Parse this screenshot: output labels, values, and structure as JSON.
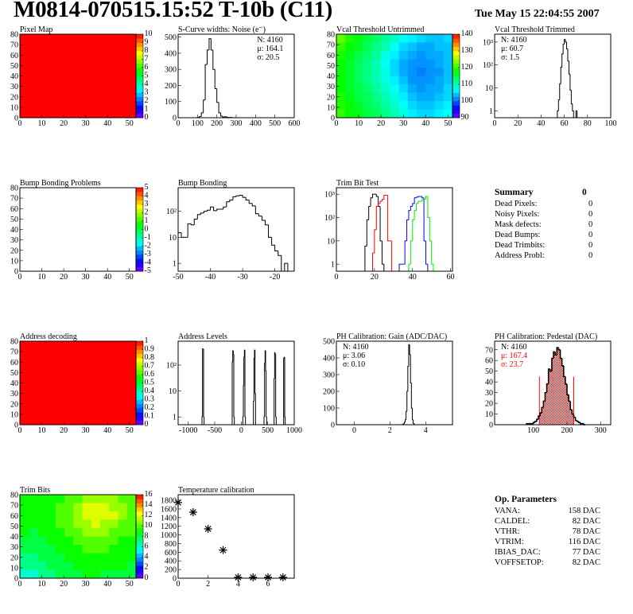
{
  "header": {
    "title": "M0814-070515.15:52 T-10b (C11)",
    "date": "Tue May 15 22:04:55 2007"
  },
  "summary": {
    "title": "Summary",
    "total": "0",
    "rows": [
      {
        "label": "Dead Pixels:",
        "value": "0"
      },
      {
        "label": "Noisy Pixels:",
        "value": "0"
      },
      {
        "label": "Mask defects:",
        "value": "0"
      },
      {
        "label": "Dead Bumps:",
        "value": "0"
      },
      {
        "label": "Dead Trimbits:",
        "value": "0"
      },
      {
        "label": "Address Probl:",
        "value": "0"
      }
    ]
  },
  "op_parameters": {
    "title": "Op. Parameters",
    "rows": [
      {
        "label": "VANA:",
        "value": "158 DAC"
      },
      {
        "label": "CALDEL:",
        "value": "82 DAC"
      },
      {
        "label": "VTHR:",
        "value": "78 DAC"
      },
      {
        "label": "VTRIM:",
        "value": "116 DAC"
      },
      {
        "label": "IBIAS_DAC:",
        "value": "77 DAC"
      },
      {
        "label": "VOFFSETOP:",
        "value": "82 DAC"
      }
    ]
  },
  "chart_data": [
    {
      "type": "heatmap",
      "title": "Pixel Map",
      "xlim": [
        0,
        53
      ],
      "ylim": [
        0,
        80
      ],
      "zlim": [
        0,
        10
      ],
      "xticks": [
        0,
        10,
        20,
        30,
        40,
        50
      ],
      "yticks": [
        0,
        10,
        20,
        30,
        40,
        50,
        60,
        70,
        80
      ],
      "palette_ticks": [
        0,
        1,
        2,
        3,
        4,
        5,
        6,
        7,
        8,
        9,
        10
      ],
      "z_grid": [
        [
          10
        ]
      ]
    },
    {
      "type": "bar",
      "title": "S-Curve widths: Noise (e⁻)",
      "xlim": [
        0,
        600
      ],
      "ylim": [
        0,
        518
      ],
      "ylog": false,
      "xticks": [
        0,
        100,
        200,
        300,
        400,
        500,
        600
      ],
      "yticks": [
        0,
        100,
        200,
        300,
        400,
        500
      ],
      "stats": {
        "position": "top-right",
        "lines": [
          {
            "text": "N: 4160",
            "color": "#000000"
          },
          {
            "text": "μ: 164.1",
            "color": "#000000"
          },
          {
            "text": "σ: 20.5",
            "color": "#000000"
          }
        ]
      },
      "series": [
        {
          "color": "#000000",
          "x0": 100,
          "width": 10,
          "values": [
            2,
            8,
            30,
            110,
            330,
            420,
            490,
            420,
            300,
            180,
            95,
            30,
            10,
            4,
            6,
            3,
            1,
            2,
            0
          ]
        }
      ]
    },
    {
      "type": "heatmap",
      "title": "Vcal Threshold Untrimmed",
      "xlim": [
        0,
        52
      ],
      "ylim": [
        0,
        80
      ],
      "zlim": [
        90,
        140
      ],
      "xticks": [
        0,
        10,
        20,
        30,
        40,
        50
      ],
      "yticks": [
        0,
        10,
        20,
        30,
        40,
        50,
        60,
        70,
        80
      ],
      "palette_ticks": [
        90,
        100,
        110,
        120,
        130,
        140
      ],
      "z_grid": [
        [
          122,
          119,
          117,
          115,
          113,
          111,
          109,
          107,
          106,
          105,
          104,
          104,
          105
        ],
        [
          120,
          118,
          116,
          114,
          112,
          110,
          107,
          105,
          104,
          103,
          103,
          104,
          104
        ],
        [
          119,
          117,
          115,
          113,
          111,
          108,
          106,
          104,
          103,
          102,
          103,
          103,
          104
        ],
        [
          118,
          116,
          114,
          112,
          110,
          107,
          105,
          103,
          102,
          102,
          102,
          103,
          104
        ],
        [
          118,
          116,
          114,
          112,
          110,
          108,
          105,
          103,
          102,
          101,
          102,
          102,
          104
        ],
        [
          118,
          116,
          114,
          112,
          110,
          108,
          106,
          104,
          102,
          102,
          102,
          103,
          104
        ],
        [
          118,
          116,
          115,
          113,
          111,
          109,
          107,
          105,
          103,
          102,
          103,
          103,
          105
        ],
        [
          119,
          117,
          115,
          114,
          112,
          110,
          108,
          106,
          104,
          103,
          103,
          104,
          105
        ],
        [
          119,
          118,
          116,
          114,
          113,
          111,
          109,
          107,
          105,
          104,
          104,
          105,
          106
        ],
        [
          120,
          118,
          117,
          115,
          114,
          112,
          110,
          108,
          106,
          105,
          105,
          106,
          107
        ]
      ]
    },
    {
      "type": "bar",
      "title": "Vcal Threshold Trimmed",
      "xlim": [
        0,
        100
      ],
      "ylim": [
        0.5,
        2200
      ],
      "ylog": true,
      "xticks": [
        0,
        20,
        40,
        60,
        80,
        100
      ],
      "yticks": [
        1,
        10,
        100,
        1000
      ],
      "ytick_labels": [
        "1",
        "10",
        "10²",
        "10³"
      ],
      "stats": {
        "position": "top-left",
        "lines": [
          {
            "text": "N: 4160",
            "color": "#000000"
          },
          {
            "text": "μ: 60.7",
            "color": "#000000"
          },
          {
            "text": "σ:  1.5",
            "color": "#000000"
          }
        ]
      },
      "series": [
        {
          "color": "#000000",
          "x0": 54,
          "width": 1,
          "values": [
            1,
            3,
            15,
            80,
            300,
            800,
            1300,
            1000,
            500,
            150,
            40,
            8,
            2,
            1,
            0,
            0,
            1,
            0
          ]
        }
      ]
    },
    {
      "type": "heatmap",
      "title": "Bump Bonding Problems",
      "xlim": [
        0,
        53
      ],
      "ylim": [
        0,
        80
      ],
      "zlim": [
        -5,
        5
      ],
      "xticks": [
        0,
        10,
        20,
        30,
        40,
        50
      ],
      "yticks": [
        0,
        10,
        20,
        30,
        40,
        50,
        60,
        70,
        80
      ],
      "palette_ticks": [
        -5,
        -4,
        -3,
        -2,
        -1,
        0,
        1,
        2,
        3,
        4,
        5
      ],
      "z_grid": []
    },
    {
      "type": "bar",
      "title": "Bump Bonding",
      "xlim": [
        -50,
        -14
      ],
      "ylim": [
        0.5,
        800
      ],
      "ylog": true,
      "xticks": [
        -50,
        -40,
        -30,
        -20
      ],
      "yticks": [
        1,
        10,
        100
      ],
      "ytick_labels": [
        "1",
        "10",
        "10²"
      ],
      "series": [
        {
          "color": "#000000",
          "x0": -50,
          "width": 1,
          "values": [
            15,
            10,
            10,
            33,
            30,
            50,
            75,
            85,
            100,
            110,
            145,
            105,
            120,
            120,
            145,
            230,
            270,
            360,
            390,
            410,
            340,
            270,
            200,
            160,
            80,
            65,
            45,
            30,
            10,
            5,
            3,
            2,
            0,
            1,
            0
          ]
        }
      ]
    },
    {
      "type": "bar",
      "title": "Trim Bit Test",
      "xlim": [
        0,
        61
      ],
      "ylim": [
        0.5,
        1900
      ],
      "ylog": true,
      "xticks": [
        0,
        20,
        40,
        60
      ],
      "yticks": [
        1,
        10,
        100,
        1000
      ],
      "ytick_labels": [
        "1",
        "10",
        "10²",
        "10³"
      ],
      "series": [
        {
          "color": "#000000",
          "x0": 15,
          "width": 1,
          "values": [
            6,
            80,
            300,
            700,
            1000,
            1000,
            800,
            300,
            10,
            1
          ]
        },
        {
          "color": "#ff0000",
          "x0": 19,
          "width": 1,
          "values": [
            3,
            30,
            300,
            400,
            500,
            600,
            900,
            900,
            10,
            10
          ]
        },
        {
          "color": "#0000ff",
          "x0": 33,
          "width": 1,
          "values": [
            1,
            1,
            1,
            10,
            80,
            200,
            300,
            400,
            700,
            750,
            800,
            800,
            700,
            10,
            1
          ]
        },
        {
          "color": "#00ee00",
          "x0": 38,
          "width": 1,
          "values": [
            1,
            10,
            80,
            200,
            400,
            500,
            500,
            600,
            600,
            800,
            100,
            10,
            1
          ]
        }
      ]
    },
    {
      "type": "heatmap",
      "title": "Address decoding",
      "xlim": [
        0,
        53
      ],
      "ylim": [
        0,
        80
      ],
      "zlim": [
        0,
        1
      ],
      "xticks": [
        0,
        10,
        20,
        30,
        40,
        50
      ],
      "yticks": [
        0,
        10,
        20,
        30,
        40,
        50,
        60,
        70,
        80
      ],
      "palette_ticks": [
        0,
        0.1,
        0.2,
        0.3,
        0.4,
        0.5,
        0.6,
        0.7,
        0.8,
        0.9,
        1
      ],
      "z_grid": [
        [
          1
        ]
      ]
    },
    {
      "type": "bar",
      "title": "Address Levels",
      "xlim": [
        -1190,
        1000
      ],
      "ylim": [
        0.5,
        830
      ],
      "ylog": true,
      "xticks": [
        -1000,
        -500,
        0,
        500,
        1000
      ],
      "yticks": [
        1,
        10,
        100
      ],
      "ytick_labels": [
        "1",
        "10",
        "10²"
      ],
      "series": [
        {
          "color": "#000000",
          "width": 10,
          "bin_list": [
            [
              -740,
              1
            ],
            [
              -730,
              420
            ],
            [
              -720,
              420
            ],
            [
              -710,
              1
            ],
            [
              -170,
              130
            ],
            [
              -160,
              360
            ],
            [
              -150,
              260
            ],
            [
              -140,
              1
            ],
            [
              30,
              1
            ],
            [
              40,
              16
            ],
            [
              50,
              200
            ],
            [
              60,
              380
            ],
            [
              70,
              1
            ],
            [
              230,
              4
            ],
            [
              240,
              180
            ],
            [
              250,
              380
            ],
            [
              260,
              8
            ],
            [
              430,
              1
            ],
            [
              440,
              120
            ],
            [
              450,
              360
            ],
            [
              460,
              60
            ],
            [
              470,
              1
            ],
            [
              620,
              30
            ],
            [
              630,
              300
            ],
            [
              640,
              260
            ],
            [
              650,
              1
            ],
            [
              800,
              180
            ],
            [
              810,
              200
            ],
            [
              820,
              1
            ]
          ]
        }
      ]
    },
    {
      "type": "bar",
      "title": "PH Calibration: Gain (ADC/DAC)",
      "xlim": [
        -1,
        5.5
      ],
      "ylim": [
        0,
        500
      ],
      "ylog": false,
      "xticks": [
        0,
        2,
        4
      ],
      "yticks": [
        0,
        100,
        200,
        300,
        400,
        500
      ],
      "stats": {
        "position": "top-left",
        "lines": [
          {
            "text": "N: 4160",
            "color": "#000000"
          },
          {
            "text": "μ: 3.06",
            "color": "#000000"
          },
          {
            "text": "σ: 0.10",
            "color": "#000000"
          }
        ]
      },
      "series": [
        {
          "color": "#000000",
          "x0": 2.7,
          "width": 0.05,
          "values": [
            2,
            5,
            15,
            30,
            80,
            200,
            350,
            480,
            420,
            250,
            100,
            30,
            8,
            2
          ]
        }
      ]
    },
    {
      "type": "bar",
      "title": "PH Calibration: Pedestal (DAC)",
      "xlim": [
        -15,
        330
      ],
      "ylim": [
        0,
        78
      ],
      "ylog": false,
      "xticks": [
        100,
        200,
        300
      ],
      "yticks": [
        0,
        10,
        20,
        30,
        40,
        50,
        60,
        70
      ],
      "stats": {
        "position": "top-left",
        "lines": [
          {
            "text": "N: 4160",
            "color": "#000000"
          },
          {
            "text": "μ: 167.4",
            "color": "#ff0000"
          },
          {
            "text": "σ: 23.7",
            "color": "#ff0000"
          }
        ]
      },
      "fit_range": [
        118,
        220
      ],
      "fit_color": "#ff0000",
      "fit_marker_height": 45,
      "series": [
        {
          "color": "#000000",
          "x0": 80,
          "width": 5,
          "values": [
            1,
            1,
            1,
            1,
            2,
            3,
            5,
            8,
            11,
            16,
            22,
            30,
            38,
            52,
            50,
            62,
            68,
            65,
            72,
            70,
            62,
            55,
            45,
            38,
            28,
            22,
            14,
            10,
            7,
            4,
            3,
            2,
            1,
            1,
            0
          ]
        }
      ]
    },
    {
      "type": "heatmap",
      "title": "Trim Bits",
      "xlim": [
        0,
        53
      ],
      "ylim": [
        0,
        80
      ],
      "zlim": [
        0,
        16
      ],
      "xticks": [
        0,
        10,
        20,
        30,
        40,
        50
      ],
      "yticks": [
        0,
        10,
        20,
        30,
        40,
        50,
        60,
        70,
        80
      ],
      "palette_ticks": [
        0,
        2,
        4,
        6,
        8,
        10,
        12,
        14,
        16
      ],
      "z_grid": [
        [
          9,
          9,
          9,
          9,
          9,
          10,
          10,
          11,
          11,
          11,
          11,
          10,
          10
        ],
        [
          9,
          9,
          9,
          9,
          10,
          10,
          11,
          12,
          12,
          12,
          11,
          11,
          10
        ],
        [
          9,
          9,
          9,
          9,
          10,
          10,
          11,
          12,
          12,
          12,
          12,
          11,
          10
        ],
        [
          9,
          9,
          9,
          9,
          10,
          10,
          11,
          11,
          12,
          11,
          11,
          10,
          10
        ],
        [
          9,
          8,
          9,
          9,
          9,
          10,
          10,
          11,
          11,
          11,
          10,
          10,
          10
        ],
        [
          8,
          8,
          8,
          9,
          9,
          9,
          10,
          10,
          10,
          10,
          10,
          9,
          9
        ],
        [
          8,
          8,
          8,
          8,
          9,
          9,
          9,
          10,
          10,
          10,
          9,
          9,
          9
        ],
        [
          7,
          7,
          8,
          8,
          8,
          9,
          9,
          9,
          9,
          9,
          9,
          9,
          9
        ],
        [
          7,
          7,
          7,
          8,
          8,
          8,
          9,
          9,
          9,
          9,
          9,
          9,
          8
        ],
        [
          6,
          6,
          7,
          7,
          8,
          8,
          8,
          9,
          9,
          8,
          8,
          8,
          8
        ]
      ]
    },
    {
      "type": "scatter",
      "title": "Temperature calibration",
      "xlim": [
        0,
        7.75
      ],
      "ylim": [
        0,
        1930
      ],
      "ylog": false,
      "xticks": [
        0,
        2,
        4,
        6
      ],
      "yticks": [
        0,
        200,
        400,
        600,
        800,
        1000,
        1200,
        1400,
        1600,
        1800
      ],
      "marker": "star",
      "points": [
        [
          0,
          1750
        ],
        [
          1,
          1525
        ],
        [
          2,
          1140
        ],
        [
          3,
          650
        ],
        [
          4,
          20
        ],
        [
          5,
          20
        ],
        [
          6,
          20
        ],
        [
          7,
          20
        ]
      ]
    }
  ]
}
